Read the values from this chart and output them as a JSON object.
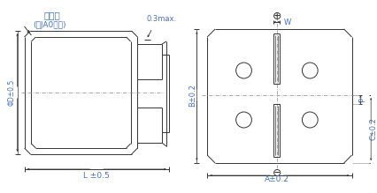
{
  "title_label1": "压力阀",
  "title_label2": "(只JA0对应)",
  "label_0_3max": "0.3max.",
  "label_phiD": "ΦD±0.5",
  "label_L": "L ±0.5",
  "label_B": "B±0.2",
  "label_A": "A±0.2",
  "label_W": "W",
  "label_P": "P",
  "label_C": "C±0.2",
  "label_plus": "⊕",
  "label_minus": "⊖",
  "text_color_blue": "#4472C4",
  "text_color_black": "#000000",
  "line_color": "#333333",
  "bg_color": "#ffffff"
}
